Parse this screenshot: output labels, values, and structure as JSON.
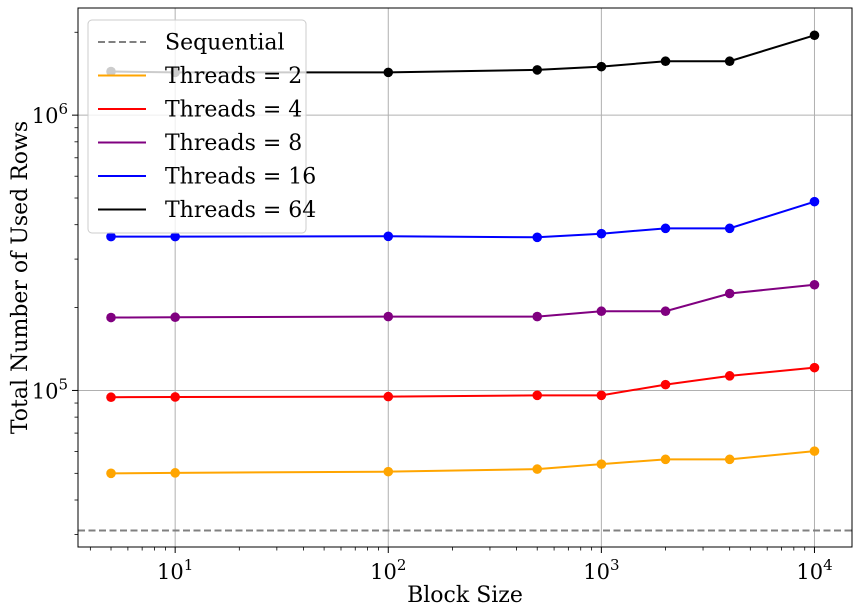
{
  "chart_data": {
    "type": "line",
    "xlabel": "Block Size",
    "ylabel": "Total Number of Used Rows",
    "xscale": "log",
    "yscale": "log",
    "xlim": [
      3.5,
      15000
    ],
    "ylim": [
      27000,
      2450000
    ],
    "grid": true,
    "legend_position": "top-left",
    "x_ticks": [
      {
        "value": 10,
        "base": "10",
        "exp": "1"
      },
      {
        "value": 100,
        "base": "10",
        "exp": "2"
      },
      {
        "value": 1000,
        "base": "10",
        "exp": "3"
      },
      {
        "value": 10000,
        "base": "10",
        "exp": "4"
      }
    ],
    "y_ticks": [
      {
        "value": 100000,
        "base": "10",
        "exp": "5"
      },
      {
        "value": 1000000,
        "base": "10",
        "exp": "6"
      }
    ],
    "x": [
      5,
      10,
      100,
      500,
      1000,
      2000,
      4000,
      10000
    ],
    "reference_lines": [
      {
        "name": "Sequential",
        "y": 31000,
        "color": "#808080",
        "style": "dashed"
      }
    ],
    "series": [
      {
        "name": "Threads = 2",
        "color": "#FFA500",
        "values": [
          50000,
          50200,
          50700,
          51800,
          54000,
          56200,
          56200,
          60200
        ]
      },
      {
        "name": "Threads = 4",
        "color": "#FF0000",
        "values": [
          94500,
          94700,
          95000,
          96000,
          96000,
          105000,
          113000,
          121000
        ]
      },
      {
        "name": "Threads = 8",
        "color": "#800080",
        "values": [
          184000,
          184500,
          185500,
          185500,
          194000,
          194000,
          225000,
          242000
        ]
      },
      {
        "name": "Threads = 16",
        "color": "#0000FF",
        "values": [
          362000,
          362000,
          363000,
          360000,
          371000,
          388000,
          388000,
          485000
        ]
      },
      {
        "name": "Threads = 64",
        "color": "#000000",
        "values": [
          1440000,
          1430000,
          1430000,
          1460000,
          1500000,
          1570000,
          1570000,
          1950000
        ]
      }
    ]
  }
}
